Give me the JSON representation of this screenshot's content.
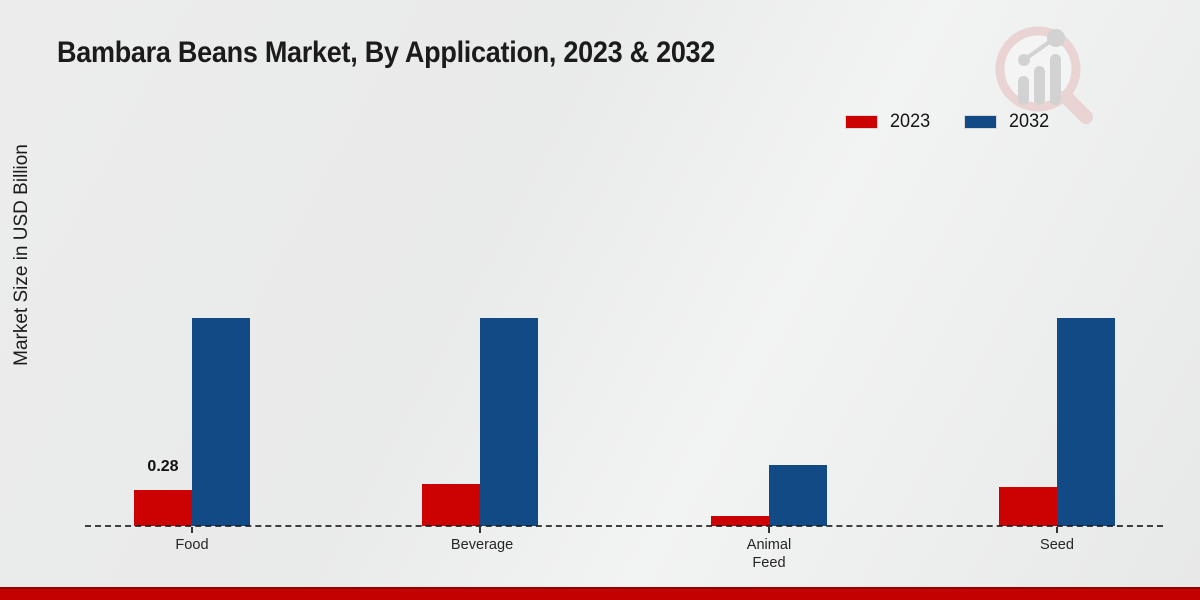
{
  "title": "Bambara Beans Market, By Application, 2023 & 2032",
  "y_axis_label": "Market Size in USD Billion",
  "legend": {
    "position": "top-right",
    "items": [
      {
        "label": "2023",
        "color": "#cc0101"
      },
      {
        "label": "2032",
        "color": "#114a85"
      }
    ]
  },
  "chart_data": {
    "type": "bar",
    "title": "Bambara Beans Market, By Application, 2023 & 2032",
    "categories": [
      "Food",
      "Beverage",
      "Animal Feed",
      "Seed"
    ],
    "series": [
      {
        "name": "2023",
        "color": "#cc0101",
        "values": [
          0.28,
          0.32,
          0.08,
          0.3
        ]
      },
      {
        "name": "2032",
        "color": "#114a85",
        "values": [
          1.6,
          1.6,
          0.47,
          1.6
        ]
      }
    ],
    "xlabel": "",
    "ylabel": "Market Size in USD Billion",
    "ylim": [
      0,
      1.8
    ],
    "grid": false,
    "axis_style": "dashed-baseline-only",
    "legend_position": "top-right",
    "annotations": [
      {
        "text": "0.28",
        "category": "Food",
        "series": "2023"
      }
    ]
  },
  "watermark_icon": "magnifier-barchart-logo",
  "footer": {
    "band_color": "#c40101"
  }
}
